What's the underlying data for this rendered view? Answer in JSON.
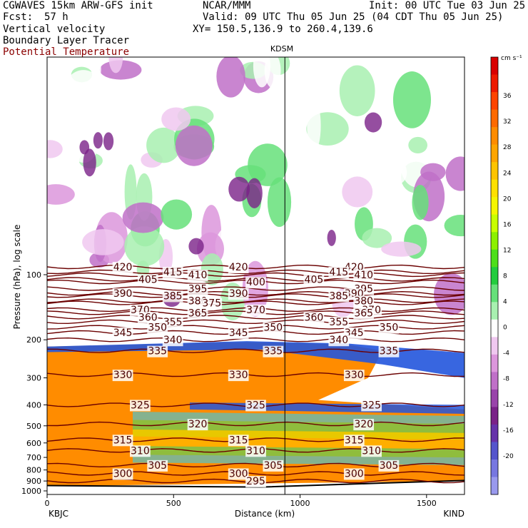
{
  "header": {
    "model": "CGWAVES 15km ARW-GFS init",
    "org": "NCAR/MMM",
    "init": "Init: 00 UTC Tue 03 Jun 25",
    "fcst_label": "Fcst:",
    "fcst_value": "57 h",
    "valid": "Valid: 09 UTC Thu 05 Jun 25 (04 CDT Thu 05 Jun 25)",
    "xy": "XY= 150.5,136.9 to 260.4,139.6",
    "fields": [
      "Vertical velocity",
      "Boundary Layer Tracer",
      "Potential Temperature"
    ]
  },
  "colors": {
    "theta_contour": "#6b0000",
    "theta_label_text": "#8b0000"
  },
  "chart_data": {
    "type": "heatmap",
    "station_marker": "KDSM",
    "station_marker_distance_km": 940,
    "xlabel": "Distance (km)",
    "ylabel": "Pressure (hPa), log scale",
    "x_left_label": "KBJC",
    "x_right_label": "KIND",
    "xlim": [
      0,
      1650
    ],
    "x_ticks": [
      "0",
      "500",
      "1000",
      "1500"
    ],
    "y_scale": "log",
    "y_ticks": [
      "100",
      "200",
      "300",
      "400",
      "500",
      "600",
      "700",
      "800",
      "900",
      "1000"
    ],
    "colorbar": {
      "unit": "cm s⁻¹",
      "ticks": [
        "36",
        "32",
        "28",
        "24",
        "20",
        "16",
        "12",
        "8",
        "4",
        "0",
        "-4",
        "-8",
        "-12",
        "-16",
        "-20"
      ],
      "colors": [
        "#d90000",
        "#ee1a00",
        "#ff4400",
        "#ff6a00",
        "#ff8c00",
        "#ffa500",
        "#ffc400",
        "#ffe000",
        "#f5f500",
        "#c8ff00",
        "#8cf000",
        "#4ddf1a",
        "#22cc3d",
        "#66e07a",
        "#a8f0b0",
        "#ffffff",
        "#f0c8f0",
        "#dc96dc",
        "#c070c8",
        "#9944aa",
        "#7a2288",
        "#6633aa",
        "#5555cc",
        "#7777e0",
        "#9999ee"
      ]
    },
    "theta_contours": [
      {
        "value": 420,
        "pressure": 92,
        "labels": [
          "420",
          "420",
          "420"
        ]
      },
      {
        "value": 415,
        "pressure": 97,
        "labels": [
          "415",
          "415"
        ]
      },
      {
        "value": 410,
        "pressure": 100,
        "labels": [
          "410",
          "410"
        ]
      },
      {
        "value": 405,
        "pressure": 105,
        "labels": [
          "405",
          "405"
        ]
      },
      {
        "value": 400,
        "pressure": 108,
        "labels": [
          "400"
        ]
      },
      {
        "value": 395,
        "pressure": 116,
        "labels": [
          "395",
          "395"
        ]
      },
      {
        "value": 390,
        "pressure": 122,
        "labels": [
          "390",
          "390",
          "390"
        ]
      },
      {
        "value": 385,
        "pressure": 125,
        "labels": [
          "385",
          "385"
        ]
      },
      {
        "value": 380,
        "pressure": 132,
        "labels": [
          "380",
          "380"
        ]
      },
      {
        "value": 375,
        "pressure": 135,
        "labels": [
          "375"
        ]
      },
      {
        "value": 370,
        "pressure": 145,
        "labels": [
          "370",
          "370",
          "370"
        ]
      },
      {
        "value": 365,
        "pressure": 150,
        "labels": [
          "365",
          "365"
        ]
      },
      {
        "value": 360,
        "pressure": 157,
        "labels": [
          "360",
          "360"
        ]
      },
      {
        "value": 355,
        "pressure": 165,
        "labels": [
          "355",
          "355"
        ]
      },
      {
        "value": 350,
        "pressure": 175,
        "labels": [
          "350",
          "350",
          "350"
        ]
      },
      {
        "value": 345,
        "pressure": 185,
        "labels": [
          "345",
          "345",
          "345"
        ]
      },
      {
        "value": 340,
        "pressure": 200,
        "labels": [
          "340",
          "340"
        ]
      },
      {
        "value": 335,
        "pressure": 225,
        "labels": [
          "335",
          "335",
          "335"
        ]
      },
      {
        "value": 330,
        "pressure": 290,
        "labels": [
          "330",
          "330",
          "330"
        ]
      },
      {
        "value": 325,
        "pressure": 400,
        "labels": [
          "325",
          "325",
          "325"
        ]
      },
      {
        "value": 320,
        "pressure": 490,
        "labels": [
          "320",
          "320"
        ]
      },
      {
        "value": 315,
        "pressure": 580,
        "labels": [
          "315",
          "315",
          "315"
        ]
      },
      {
        "value": 310,
        "pressure": 650,
        "labels": [
          "310",
          "310",
          "310"
        ]
      },
      {
        "value": 305,
        "pressure": 760,
        "labels": [
          "305",
          "305",
          "305"
        ]
      },
      {
        "value": 300,
        "pressure": 830,
        "labels": [
          "300",
          "300",
          "300"
        ]
      },
      {
        "value": 295,
        "pressure": 900,
        "labels": [
          "295"
        ]
      }
    ]
  }
}
